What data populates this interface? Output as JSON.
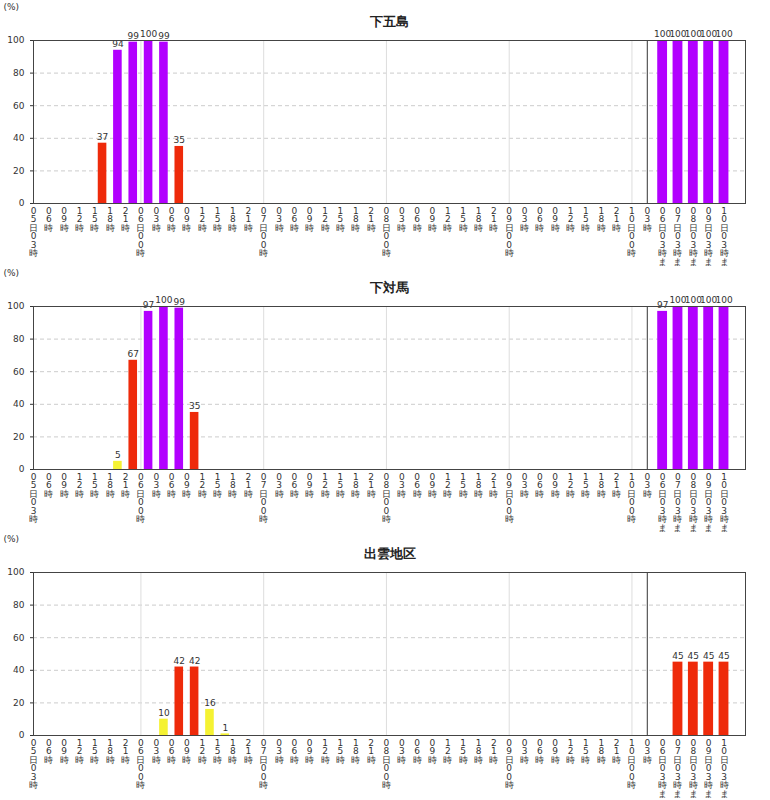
{
  "chart_data": [
    {
      "type": "bar",
      "title": "下五島",
      "ylabel": "(%)",
      "categories": [
        "05日03時",
        "06時",
        "09時",
        "12時",
        "15時",
        "18時",
        "21時",
        "06日00時",
        "03時",
        "06時",
        "09時",
        "12時",
        "15時",
        "18時",
        "21時",
        "07日00時",
        "03時",
        "06時",
        "09時",
        "12時",
        "15時",
        "18時",
        "21時",
        "08日00時",
        "03時",
        "06時",
        "09時",
        "12時",
        "15時",
        "18時",
        "21時",
        "09日00時",
        "03時",
        "06時",
        "09時",
        "12時",
        "15時",
        "18時",
        "21時",
        "10日00時",
        "03時",
        "06日03時まで",
        "07日03時まで",
        "08日03時まで",
        "09日03時まで",
        "10日03時まで"
      ],
      "values": [
        null,
        null,
        null,
        null,
        37,
        94,
        99,
        100,
        99,
        35,
        null,
        null,
        null,
        null,
        null,
        null,
        null,
        null,
        null,
        null,
        null,
        null,
        null,
        null,
        null,
        null,
        null,
        null,
        null,
        null,
        null,
        null,
        null,
        null,
        null,
        null,
        null,
        null,
        null,
        null,
        null,
        100,
        100,
        100,
        100,
        100
      ],
      "colors": [
        null,
        null,
        null,
        null,
        "#ee2a0a",
        "#b200ff",
        "#b200ff",
        "#b200ff",
        "#b200ff",
        "#ee2a0a",
        null,
        null,
        null,
        null,
        null,
        null,
        null,
        null,
        null,
        null,
        null,
        null,
        null,
        null,
        null,
        null,
        null,
        null,
        null,
        null,
        null,
        null,
        null,
        null,
        null,
        null,
        null,
        null,
        null,
        null,
        null,
        "#b200ff",
        "#b200ff",
        "#b200ff",
        "#b200ff",
        "#b200ff"
      ],
      "ylim": [
        0,
        100
      ],
      "yticks": [
        0,
        20,
        40,
        60,
        80,
        100
      ],
      "grid": true,
      "data_labels": true
    },
    {
      "type": "bar",
      "title": "下対馬",
      "ylabel": "(%)",
      "categories": [
        "05日03時",
        "06時",
        "09時",
        "12時",
        "15時",
        "18時",
        "21時",
        "06日00時",
        "03時",
        "06時",
        "09時",
        "12時",
        "15時",
        "18時",
        "21時",
        "07日00時",
        "03時",
        "06時",
        "09時",
        "12時",
        "15時",
        "18時",
        "21時",
        "08日00時",
        "03時",
        "06時",
        "09時",
        "12時",
        "15時",
        "18時",
        "21時",
        "09日00時",
        "03時",
        "06時",
        "09時",
        "12時",
        "15時",
        "18時",
        "21時",
        "10日00時",
        "03時",
        "06日03時まで",
        "07日03時まで",
        "08日03時まで",
        "09日03時まで",
        "10日03時まで"
      ],
      "values": [
        null,
        null,
        null,
        null,
        null,
        5,
        67,
        97,
        100,
        99,
        35,
        null,
        null,
        null,
        null,
        null,
        null,
        null,
        null,
        null,
        null,
        null,
        null,
        null,
        null,
        null,
        null,
        null,
        null,
        null,
        null,
        null,
        null,
        null,
        null,
        null,
        null,
        null,
        null,
        null,
        null,
        97,
        100,
        100,
        100,
        100
      ],
      "colors": [
        null,
        null,
        null,
        null,
        null,
        "#f5f232",
        "#ee2a0a",
        "#b200ff",
        "#b200ff",
        "#b200ff",
        "#ee2a0a",
        null,
        null,
        null,
        null,
        null,
        null,
        null,
        null,
        null,
        null,
        null,
        null,
        null,
        null,
        null,
        null,
        null,
        null,
        null,
        null,
        null,
        null,
        null,
        null,
        null,
        null,
        null,
        null,
        null,
        null,
        "#b200ff",
        "#b200ff",
        "#b200ff",
        "#b200ff",
        "#b200ff"
      ],
      "ylim": [
        0,
        100
      ],
      "yticks": [
        0,
        20,
        40,
        60,
        80,
        100
      ],
      "grid": true,
      "data_labels": true
    },
    {
      "type": "bar",
      "title": "出雲地区",
      "ylabel": "(%)",
      "categories": [
        "05日03時",
        "06時",
        "09時",
        "12時",
        "15時",
        "18時",
        "21時",
        "06日00時",
        "03時",
        "06時",
        "09時",
        "12時",
        "15時",
        "18時",
        "21時",
        "07日00時",
        "03時",
        "06時",
        "09時",
        "12時",
        "15時",
        "18時",
        "21時",
        "08日00時",
        "03時",
        "06時",
        "09時",
        "12時",
        "15時",
        "18時",
        "21時",
        "09日00時",
        "03時",
        "06時",
        "09時",
        "12時",
        "15時",
        "18時",
        "21時",
        "10日00時",
        "03時",
        "06日03時まで",
        "07日03時まで",
        "08日03時まで",
        "09日03時まで",
        "10日03時まで"
      ],
      "values": [
        null,
        null,
        null,
        null,
        null,
        null,
        null,
        null,
        10,
        42,
        42,
        16,
        1,
        null,
        null,
        null,
        null,
        null,
        null,
        null,
        null,
        null,
        null,
        null,
        null,
        null,
        null,
        null,
        null,
        null,
        null,
        null,
        null,
        null,
        null,
        null,
        null,
        null,
        null,
        null,
        null,
        null,
        45,
        45,
        45,
        45
      ],
      "colors": [
        null,
        null,
        null,
        null,
        null,
        null,
        null,
        null,
        "#f5f232",
        "#ee2a0a",
        "#ee2a0a",
        "#f5f232",
        "#f5f232",
        null,
        null,
        null,
        null,
        null,
        null,
        null,
        null,
        null,
        null,
        null,
        null,
        null,
        null,
        null,
        null,
        null,
        null,
        null,
        null,
        null,
        null,
        null,
        null,
        null,
        null,
        null,
        null,
        null,
        "#ee2a0a",
        "#ee2a0a",
        "#ee2a0a",
        "#ee2a0a"
      ],
      "ylim": [
        0,
        100
      ],
      "yticks": [
        0,
        20,
        40,
        60,
        80,
        100
      ],
      "grid": true,
      "data_labels": true
    }
  ]
}
